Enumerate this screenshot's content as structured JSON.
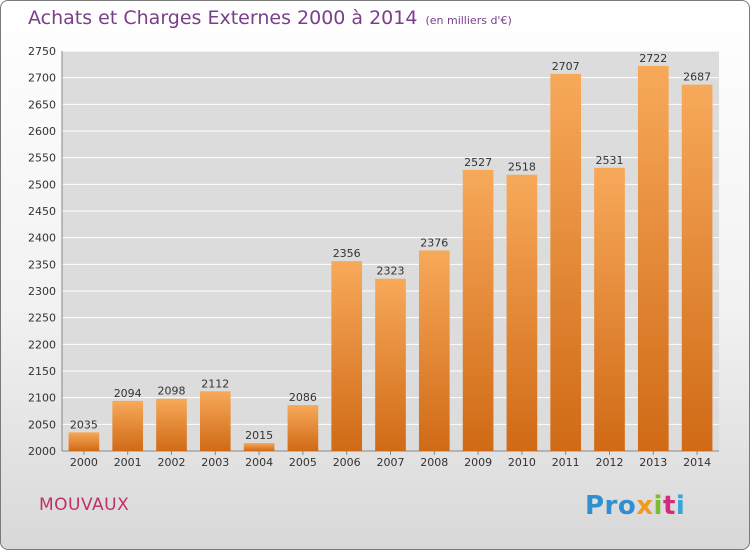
{
  "chart_data": {
    "type": "bar",
    "title": "Achats et Charges Externes 2000 à 2014",
    "subtitle": "(en milliers d'€)",
    "categories": [
      "2000",
      "2001",
      "2002",
      "2003",
      "2004",
      "2005",
      "2006",
      "2007",
      "2008",
      "2009",
      "2010",
      "2011",
      "2012",
      "2013",
      "2014"
    ],
    "values": [
      2035,
      2094,
      2098,
      2112,
      2015,
      2086,
      2356,
      2323,
      2376,
      2527,
      2518,
      2707,
      2531,
      2722,
      2687
    ],
    "ylim": [
      2000,
      2750
    ],
    "yticks": [
      2000,
      2050,
      2100,
      2150,
      2200,
      2250,
      2300,
      2350,
      2400,
      2450,
      2500,
      2550,
      2600,
      2650,
      2700,
      2750
    ],
    "grid": true,
    "xlabel": "",
    "ylabel": "",
    "bar_color": "#f0902f"
  },
  "footer": {
    "city": "MOUVAUX",
    "logo": [
      "Pro",
      "x",
      "i",
      "t",
      "i"
    ]
  }
}
